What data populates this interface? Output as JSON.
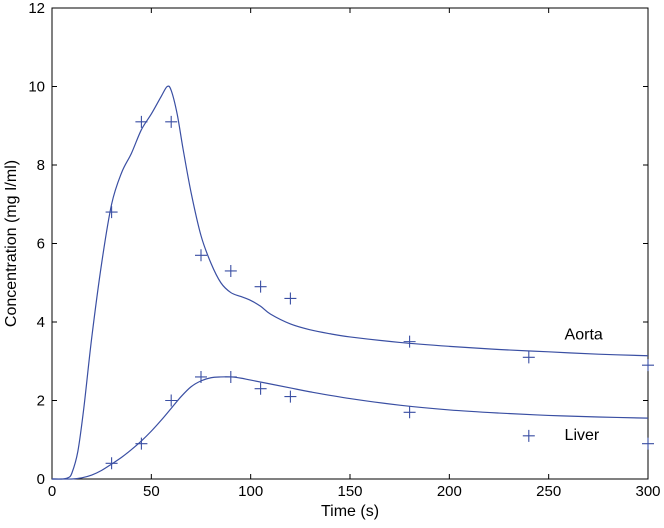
{
  "chart_data": {
    "type": "line",
    "xlabel": "Time (s)",
    "ylabel": "Concentration (mg I/ml)",
    "xlim": [
      0,
      300
    ],
    "ylim": [
      0,
      12
    ],
    "xticks": [
      "0",
      "50",
      "100",
      "150",
      "200",
      "250",
      "300"
    ],
    "yticks": [
      "0",
      "2",
      "4",
      "6",
      "8",
      "10",
      "12"
    ],
    "grid": false,
    "line_color": "#3a4fa3",
    "annotations": [
      {
        "text": "Aorta",
        "x": 258,
        "y": 3.55
      },
      {
        "text": "Liver",
        "x": 258,
        "y": 1.0
      }
    ],
    "series": [
      {
        "name": "Aorta",
        "fitted": {
          "x": [
            0,
            5,
            8,
            10,
            13,
            16,
            20,
            25,
            30,
            35,
            40,
            45,
            50,
            55,
            58,
            60,
            63,
            66,
            70,
            75,
            80,
            85,
            90,
            95,
            100,
            105,
            110,
            120,
            130,
            140,
            150,
            175,
            200,
            225,
            250,
            275,
            300
          ],
          "y": [
            0,
            0,
            0.03,
            0.15,
            0.7,
            1.8,
            3.6,
            5.5,
            7.0,
            7.8,
            8.3,
            8.9,
            9.3,
            9.75,
            10.0,
            9.9,
            9.3,
            8.4,
            7.3,
            6.2,
            5.5,
            5.0,
            4.75,
            4.65,
            4.55,
            4.4,
            4.2,
            3.95,
            3.8,
            3.7,
            3.62,
            3.48,
            3.38,
            3.3,
            3.24,
            3.18,
            3.14
          ]
        },
        "measured": {
          "x": [
            30,
            45,
            60,
            75,
            90,
            105,
            120,
            180,
            240,
            300
          ],
          "y": [
            6.8,
            9.1,
            9.1,
            5.7,
            5.3,
            4.9,
            4.6,
            3.5,
            3.1,
            2.9
          ]
        }
      },
      {
        "name": "Liver",
        "fitted": {
          "x": [
            0,
            10,
            15,
            20,
            25,
            30,
            35,
            40,
            45,
            50,
            55,
            60,
            65,
            70,
            75,
            80,
            85,
            90,
            95,
            100,
            110,
            120,
            130,
            150,
            175,
            200,
            225,
            250,
            275,
            300
          ],
          "y": [
            0,
            0,
            0.03,
            0.1,
            0.22,
            0.38,
            0.55,
            0.75,
            0.97,
            1.22,
            1.5,
            1.8,
            2.1,
            2.35,
            2.5,
            2.58,
            2.6,
            2.6,
            2.57,
            2.52,
            2.42,
            2.32,
            2.22,
            2.05,
            1.88,
            1.76,
            1.68,
            1.62,
            1.58,
            1.55
          ]
        },
        "measured": {
          "x": [
            30,
            45,
            60,
            75,
            90,
            105,
            120,
            180,
            240,
            300
          ],
          "y": [
            0.4,
            0.9,
            2.0,
            2.6,
            2.6,
            2.3,
            2.1,
            1.7,
            1.1,
            0.9
          ]
        }
      }
    ]
  }
}
